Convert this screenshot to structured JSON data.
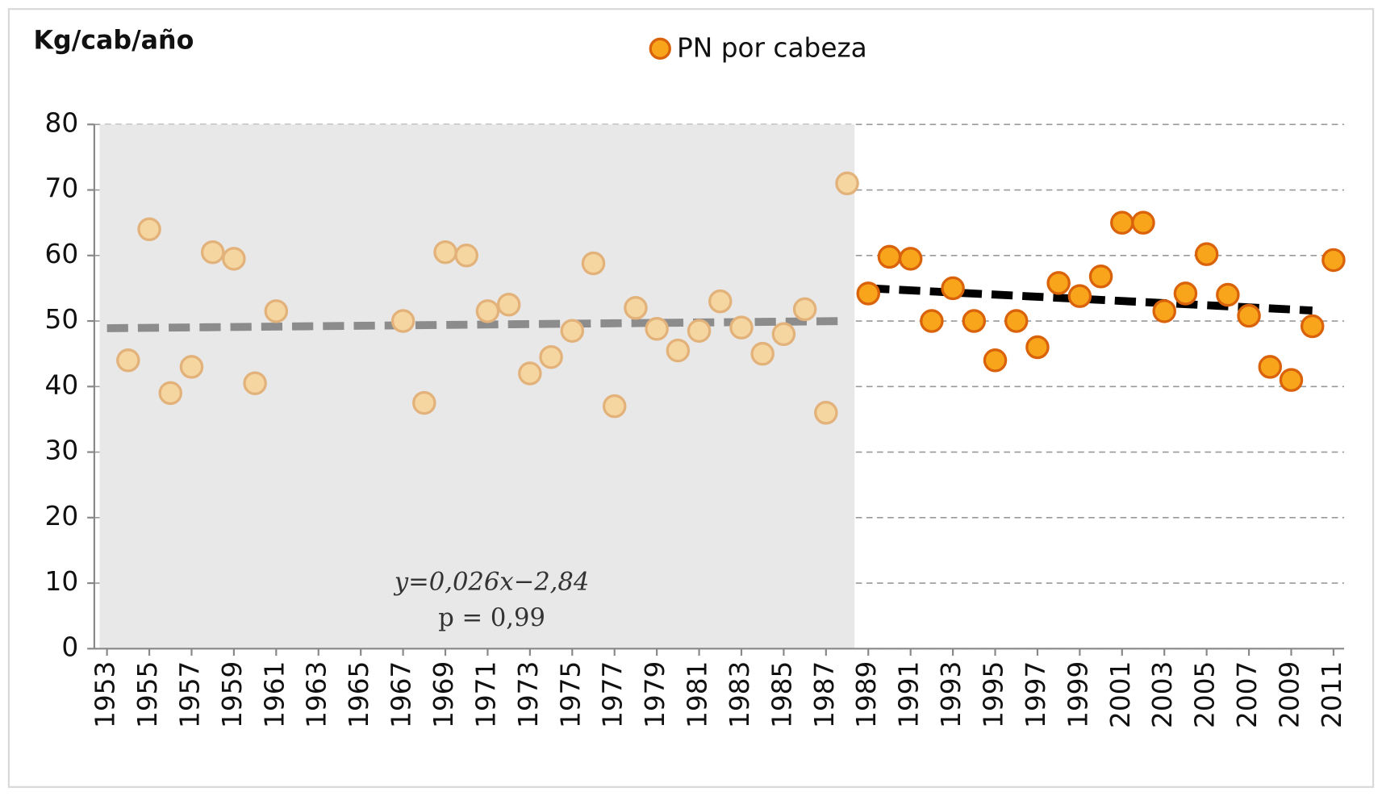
{
  "chart_data": {
    "type": "scatter",
    "y_axis_label": "Kg/cab/año",
    "series": [
      {
        "color": "#f6d6a0",
        "edge_color": "#e2b27a",
        "x": [
          1954,
          1955,
          1956,
          1957,
          1958,
          1959,
          1960,
          1961,
          1967,
          1968,
          1969,
          1970,
          1971,
          1972,
          1973,
          1974,
          1975,
          1976,
          1977,
          1978,
          1979,
          1980,
          1981,
          1982,
          1983,
          1984,
          1985,
          1986,
          1987,
          1988
        ],
        "values": [
          44,
          64,
          39,
          43,
          60.5,
          59.5,
          40.5,
          51.5,
          50,
          37.5,
          60.5,
          60,
          51.5,
          52.5,
          42,
          44.5,
          48.5,
          58.8,
          37,
          52,
          48.8,
          45.5,
          48.5,
          53,
          49,
          45,
          48,
          51.8,
          36,
          71
        ]
      },
      {
        "name": "PN por cabeza",
        "color": "#f8a51c",
        "edge_color": "#d9620a",
        "x": [
          1989,
          1990,
          1991,
          1992,
          1993,
          1994,
          1995,
          1996,
          1997,
          1998,
          1999,
          2000,
          2001,
          2002,
          2003,
          2004,
          2005,
          2006,
          2007,
          2008,
          2009,
          2010,
          2011
        ],
        "values": [
          54.2,
          59.8,
          59.5,
          50,
          55,
          50,
          44,
          50,
          46,
          55.8,
          53.8,
          56.8,
          65,
          65,
          51.5,
          54.2,
          60.2,
          54,
          50.8,
          43,
          41,
          49.2,
          59.3
        ]
      }
    ],
    "trendlines": [
      {
        "x": [
          1953,
          1988
        ],
        "values": [
          48.9,
          50
        ],
        "color": "#8c8c8c"
      },
      {
        "x": [
          1989,
          2010
        ],
        "values": [
          55,
          51.6
        ],
        "color": "#000000"
      }
    ],
    "annotations": [
      "y=0,026x−2,84",
      "p = 0,99"
    ],
    "shaded_xlim": [
      1952.4,
      1988.35
    ],
    "xlim": [
      1952.4,
      2011.5
    ],
    "xticks": [
      1953,
      1955,
      1957,
      1959,
      1961,
      1963,
      1965,
      1967,
      1969,
      1971,
      1973,
      1975,
      1977,
      1979,
      1981,
      1983,
      1985,
      1987,
      1989,
      1991,
      1993,
      1995,
      1997,
      1999,
      2001,
      2003,
      2005,
      2007,
      2009,
      2011
    ],
    "ylim": [
      0,
      80
    ],
    "yticks": [
      0,
      10,
      20,
      30,
      40,
      50,
      60,
      70,
      80
    ],
    "grid": true,
    "legend": "top"
  }
}
